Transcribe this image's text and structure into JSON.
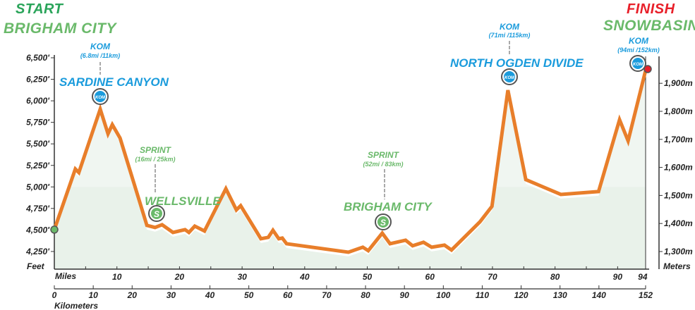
{
  "labels": {
    "start": "START",
    "start_city": "BRIGHAM CITY",
    "finish": "FINISH",
    "finish_city": "SNOWBASIN",
    "kom1": {
      "title": "KOM",
      "dist": "(6.8mi /11km)",
      "name": "SARDINE CANYON"
    },
    "sprint1": {
      "title": "SPRINT",
      "dist": "(16mi / 25km)",
      "name": "WELLSVILLE"
    },
    "sprint2": {
      "title": "SPRINT",
      "dist": "(52mi / 83km)",
      "name": "BRIGHAM CITY"
    },
    "kom2": {
      "title": "KOM",
      "dist": "(71mi /115km)",
      "name": "NORTH OGDEN DIVIDE"
    },
    "kom3": {
      "title": "KOM",
      "dist": "(94mi /152km)"
    },
    "kom_icon": "KOM",
    "sprint_icon": "S"
  },
  "colors": {
    "line": "#e87e2a",
    "fill": "#e9f2ea",
    "fill_high": "#dcebdd",
    "kom": "#1a9bdc",
    "sprint": "#6ab96a",
    "start": "#6ab96a",
    "finish": "#e8202a"
  },
  "chart_data": {
    "type": "area",
    "title": "",
    "xlabel": "Kilometers",
    "xlabel2": "Miles",
    "ylabel": "Feet",
    "ylabel2": "Meters",
    "xlim": [
      0,
      152
    ],
    "ylim_ft": [
      4100,
      6600
    ],
    "x_km": [
      0,
      5.4,
      6.3,
      11.8,
      13.8,
      14.9,
      16.9,
      23.8,
      25.9,
      27.7,
      30.5,
      33.6,
      34.6,
      36.1,
      38.6,
      44.1,
      46.8,
      47.9,
      53.1,
      55.0,
      56.2,
      57.7,
      58.6,
      59.7,
      75.6,
      79.3,
      80.7,
      84.3,
      86.3,
      90.3,
      92.1,
      94.9,
      97.0,
      100.3,
      102.1,
      109.4,
      112.5,
      116.6,
      121.2,
      130.2,
      139.9,
      145.3,
      147.5,
      152
    ],
    "elevation_ft": [
      4504,
      5208,
      5167,
      5903,
      5617,
      5723,
      5567,
      4553,
      4529,
      4561,
      4471,
      4504,
      4471,
      4545,
      4488,
      4979,
      4733,
      4782,
      4398,
      4414,
      4496,
      4398,
      4406,
      4340,
      4242,
      4300,
      4259,
      4463,
      4340,
      4381,
      4316,
      4357,
      4300,
      4324,
      4267,
      4594,
      4774,
      6124,
      5085,
      4913,
      4946,
      5780,
      5535,
      6353
    ],
    "ft_ticks": [
      {
        "v": 4250,
        "l": "4,250'"
      },
      {
        "v": 4500,
        "l": "4,500'"
      },
      {
        "v": 4750,
        "l": "4,750'"
      },
      {
        "v": 5000,
        "l": "5,000'"
      },
      {
        "v": 5250,
        "l": "5,250'"
      },
      {
        "v": 5500,
        "l": "5,500'"
      },
      {
        "v": 5750,
        "l": "5,750'"
      },
      {
        "v": 6000,
        "l": "6,000'"
      },
      {
        "v": 6250,
        "l": "6,250'"
      },
      {
        "v": 6500,
        "l": "6,500'"
      }
    ],
    "m_ticks": [
      {
        "v": 1300,
        "l": "1,300m"
      },
      {
        "v": 1400,
        "l": "1,400m"
      },
      {
        "v": 1500,
        "l": "1,500m"
      },
      {
        "v": 1600,
        "l": "1,600m"
      },
      {
        "v": 1700,
        "l": "1,700m"
      },
      {
        "v": 1800,
        "l": "1,800m"
      },
      {
        "v": 1900,
        "l": "1,900m"
      }
    ],
    "mile_ticks": [
      {
        "v": 10,
        "l": "10"
      },
      {
        "v": 20,
        "l": "20"
      },
      {
        "v": 30,
        "l": "30"
      },
      {
        "v": 40,
        "l": "40"
      },
      {
        "v": 50,
        "l": "50"
      },
      {
        "v": 60,
        "l": "60"
      },
      {
        "v": 70,
        "l": "70"
      },
      {
        "v": 80,
        "l": "80"
      },
      {
        "v": 90,
        "l": "90"
      },
      {
        "v": 94,
        "l": "94"
      }
    ],
    "km_ticks": [
      {
        "v": 0,
        "l": "0"
      },
      {
        "v": 10,
        "l": "10"
      },
      {
        "v": 20,
        "l": "20"
      },
      {
        "v": 30,
        "l": "30"
      },
      {
        "v": 40,
        "l": "40"
      },
      {
        "v": 50,
        "l": "50"
      },
      {
        "v": 60,
        "l": "60"
      },
      {
        "v": 70,
        "l": "70"
      },
      {
        "v": 80,
        "l": "80"
      },
      {
        "v": 90,
        "l": "90"
      },
      {
        "v": 100,
        "l": "100"
      },
      {
        "v": 110,
        "l": "110"
      },
      {
        "v": 120,
        "l": "120"
      },
      {
        "v": 130,
        "l": "130"
      },
      {
        "v": 140,
        "l": "140"
      },
      {
        "v": 152,
        "l": "152"
      }
    ]
  }
}
